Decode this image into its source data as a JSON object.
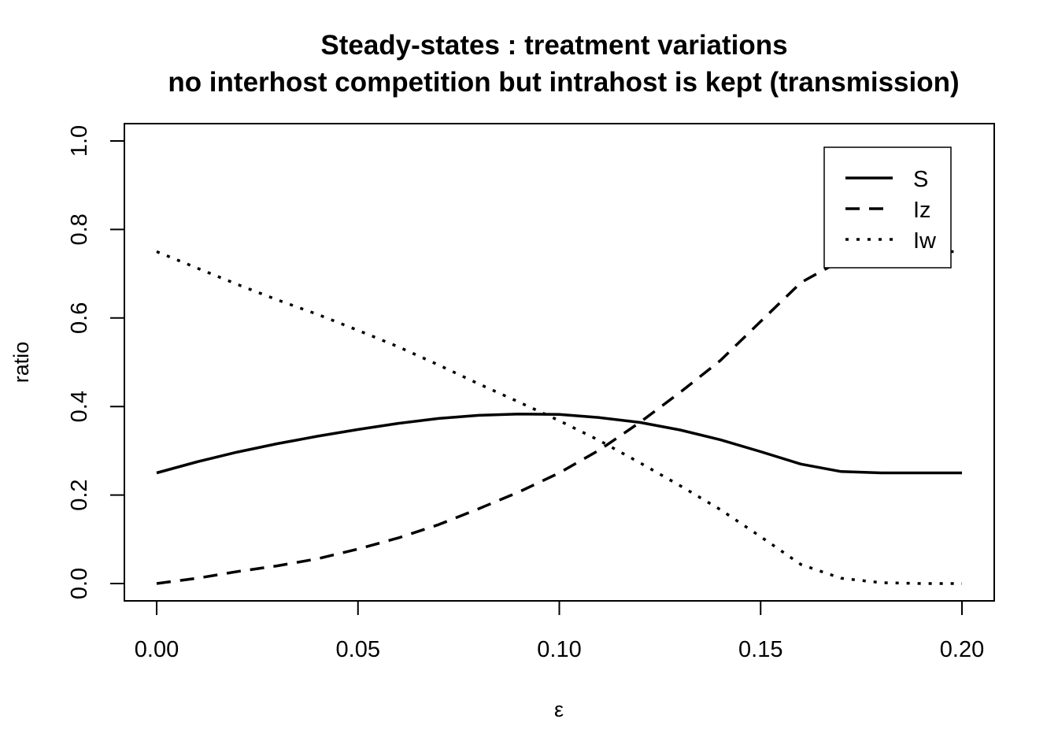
{
  "chart_data": {
    "type": "line",
    "title": "Steady-states : treatment variations",
    "subtitle": "no interhost competition but intrahost is kept (transmission)",
    "xlabel": "ε",
    "ylabel": "ratio",
    "xlim": [
      0,
      0.2
    ],
    "ylim": [
      0,
      1
    ],
    "x_ticks": [
      "0.00",
      "0.05",
      "0.10",
      "0.15",
      "0.20"
    ],
    "y_ticks": [
      "0.0",
      "0.2",
      "0.4",
      "0.6",
      "0.8",
      "1.0"
    ],
    "grid": false,
    "legend_position": "top-right",
    "x": [
      0,
      0.01,
      0.02,
      0.03,
      0.04,
      0.05,
      0.06,
      0.07,
      0.08,
      0.09,
      0.1,
      0.11,
      0.12,
      0.13,
      0.14,
      0.15,
      0.16,
      0.17,
      0.18,
      0.19,
      0.2
    ],
    "series": [
      {
        "name": "S",
        "style": "solid",
        "values": [
          0.25,
          0.275,
          0.297,
          0.316,
          0.333,
          0.348,
          0.362,
          0.373,
          0.38,
          0.383,
          0.382,
          0.375,
          0.364,
          0.347,
          0.325,
          0.298,
          0.27,
          0.253,
          0.25,
          0.25,
          0.25
        ]
      },
      {
        "name": "Iz",
        "style": "dashed",
        "values": [
          0.0,
          0.012,
          0.027,
          0.04,
          0.056,
          0.078,
          0.103,
          0.133,
          0.169,
          0.207,
          0.25,
          0.302,
          0.364,
          0.432,
          0.504,
          0.592,
          0.68,
          0.73,
          0.748,
          0.75,
          0.75
        ]
      },
      {
        "name": "Iw",
        "style": "dotted",
        "values": [
          0.75,
          0.713,
          0.676,
          0.641,
          0.608,
          0.572,
          0.535,
          0.494,
          0.451,
          0.41,
          0.368,
          0.323,
          0.273,
          0.221,
          0.167,
          0.106,
          0.043,
          0.012,
          0.002,
          0.0,
          0.0
        ]
      }
    ]
  }
}
